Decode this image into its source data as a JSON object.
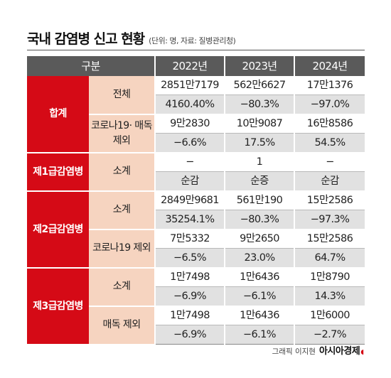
{
  "title": "국내 감염병 신고 현황",
  "subtitle": "(단위: 명, 자료: 질병관리청)",
  "table": {
    "header": [
      "구분",
      "2022년",
      "2023년",
      "2024년"
    ],
    "groups": [
      {
        "name": "합계",
        "subgroups": [
          {
            "label": "전체",
            "rows": [
              [
                "2851만7179",
                "562만6627",
                "17만1376"
              ],
              [
                "4160.40%",
                "−80.3%",
                "−97.0%"
              ]
            ]
          },
          {
            "label": "코로나19· 매독 제외",
            "rows": [
              [
                "9만2830",
                "10만9087",
                "16만8586"
              ],
              [
                "−6.6%",
                "17.5%",
                "54.5%"
              ]
            ]
          }
        ]
      },
      {
        "name": "제1급감염병",
        "subgroups": [
          {
            "label": "소계",
            "rows": [
              [
                "−",
                "1",
                "−"
              ],
              [
                "순감",
                "순증",
                "순감"
              ]
            ]
          }
        ]
      },
      {
        "name": "제2급감염병",
        "subgroups": [
          {
            "label": "소계",
            "rows": [
              [
                "2849만9681",
                "561만190",
                "15만2586"
              ],
              [
                "35254.1%",
                "−80.3%",
                "−97.3%"
              ]
            ]
          },
          {
            "label": "코로나19 제외",
            "rows": [
              [
                "7만5332",
                "9만2650",
                "15만2586"
              ],
              [
                "−6.5%",
                "23.0%",
                "64.7%"
              ]
            ]
          }
        ]
      },
      {
        "name": "제3급감염병",
        "subgroups": [
          {
            "label": "소계",
            "rows": [
              [
                "1만7498",
                "1만6436",
                "1만8790"
              ],
              [
                "−6.9%",
                "−6.1%",
                "14.3%"
              ]
            ]
          },
          {
            "label": "매독 제외",
            "rows": [
              [
                "1만7498",
                "1만6436",
                "1만6000"
              ],
              [
                "−6.9%",
                "−6.1%",
                "−2.7%"
              ]
            ]
          }
        ]
      }
    ]
  },
  "credit": {
    "text": "그래픽 이지현",
    "brand": "아시아경제"
  },
  "colors": {
    "category": "#d50a16",
    "subcategory": "#f6d4c0",
    "header": "#5a5a5a",
    "row_alt": "#e1e1e1"
  }
}
